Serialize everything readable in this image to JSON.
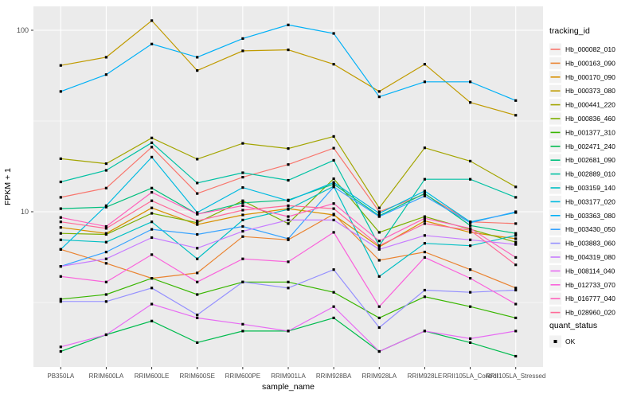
{
  "chart_data": {
    "type": "line",
    "title": "",
    "xlabel": "sample_name",
    "ylabel": "FPKM + 1",
    "y_scale": "log10",
    "y_ticks": [
      "100",
      "10"
    ],
    "y_tick_values": [
      100,
      10
    ],
    "ylim": [
      1.4,
      130
    ],
    "grid": "on",
    "legend_position": "right",
    "categories": [
      "PB350LA",
      "RRIM600LA",
      "RRIM600LE",
      "RRIM600SE",
      "RRIM600PE",
      "RRIM901LA",
      "RRIM928BA",
      "RRIM928LA",
      "RRIM928LE",
      "RRII105LA_Control",
      "RRII105LA_Stressed"
    ],
    "series": [
      {
        "name": "Hb_000082_010",
        "color": "#F8766D",
        "values": [
          12.0,
          13.5,
          22.7,
          12.6,
          15.5,
          18.2,
          22.4,
          10.0,
          12.5,
          8.8,
          8.6
        ]
      },
      {
        "name": "Hb_000163_090",
        "color": "#EA8331",
        "values": [
          6.2,
          5.2,
          4.3,
          4.6,
          7.3,
          7.0,
          9.7,
          5.4,
          6.0,
          4.8,
          3.8
        ]
      },
      {
        "name": "Hb_000170_090",
        "color": "#D89000",
        "values": [
          8.2,
          7.6,
          10.5,
          8.5,
          9.6,
          10.4,
          9.6,
          6.4,
          8.9,
          7.7,
          7.1
        ]
      },
      {
        "name": "Hb_000373_080",
        "color": "#C09B00",
        "values": [
          64,
          71,
          113,
          60,
          77,
          78,
          65,
          46,
          65,
          40,
          34
        ]
      },
      {
        "name": "Hb_000441_220",
        "color": "#A3A500",
        "values": [
          19.6,
          18.4,
          25.5,
          19.5,
          23.8,
          22.3,
          26.0,
          10.5,
          22.5,
          19.0,
          13.7
        ]
      },
      {
        "name": "Hb_000836_460",
        "color": "#7CAE00",
        "values": [
          7.6,
          7.5,
          9.8,
          8.7,
          11.5,
          8.6,
          15.2,
          7.7,
          9.4,
          8.0,
          6.8
        ]
      },
      {
        "name": "Hb_001377_310",
        "color": "#39B600",
        "values": [
          3.3,
          3.5,
          4.3,
          3.5,
          4.1,
          4.1,
          3.6,
          2.6,
          3.4,
          3.0,
          2.6
        ]
      },
      {
        "name": "Hb_002471_240",
        "color": "#00BB4E",
        "values": [
          1.7,
          2.1,
          2.5,
          1.9,
          2.2,
          2.2,
          2.6,
          1.7,
          2.2,
          1.9,
          1.6
        ]
      },
      {
        "name": "Hb_002681_090",
        "color": "#00BF7D",
        "values": [
          10.4,
          10.6,
          13.5,
          9.7,
          11.2,
          11.6,
          14.2,
          9.5,
          12.6,
          8.4,
          7.6
        ]
      },
      {
        "name": "Hb_002889_010",
        "color": "#00C1A3",
        "values": [
          14.6,
          16.9,
          24.0,
          14.4,
          16.4,
          14.9,
          19.2,
          6.5,
          15.1,
          15.1,
          12.0
        ]
      },
      {
        "name": "Hb_003159_140",
        "color": "#00BFC4",
        "values": [
          7.0,
          6.8,
          8.8,
          5.5,
          9.0,
          10.3,
          13.8,
          4.4,
          6.7,
          6.5,
          7.4
        ]
      },
      {
        "name": "Hb_003177_020",
        "color": "#00BAE0",
        "values": [
          6.2,
          10.8,
          20.0,
          9.9,
          13.6,
          11.5,
          14.5,
          9.8,
          13.0,
          8.8,
          9.9
        ]
      },
      {
        "name": "Hb_003363_080",
        "color": "#00B0F6",
        "values": [
          46,
          57,
          84,
          71,
          90,
          107,
          96,
          43,
          52,
          52,
          41
        ]
      },
      {
        "name": "Hb_003430_050",
        "color": "#35A2FF",
        "values": [
          5.0,
          6.0,
          8.0,
          7.5,
          8.3,
          7.1,
          13.7,
          9.4,
          12.2,
          8.7,
          10.0
        ]
      },
      {
        "name": "Hb_003883_060",
        "color": "#9590FF",
        "values": [
          3.2,
          3.2,
          3.8,
          2.7,
          4.1,
          3.8,
          4.8,
          2.3,
          3.7,
          3.6,
          3.7
        ]
      },
      {
        "name": "Hb_004319_080",
        "color": "#C77CFF",
        "values": [
          5.0,
          5.5,
          7.2,
          6.3,
          7.8,
          9.0,
          9.0,
          6.2,
          7.4,
          7.0,
          6.6
        ]
      },
      {
        "name": "Hb_008114_040",
        "color": "#E76BF3",
        "values": [
          1.8,
          2.1,
          3.1,
          2.6,
          2.4,
          2.2,
          3.0,
          1.7,
          2.2,
          2.0,
          2.2
        ]
      },
      {
        "name": "Hb_012733_070",
        "color": "#FA62DB",
        "values": [
          4.4,
          4.1,
          5.8,
          4.1,
          5.5,
          5.3,
          7.7,
          3.0,
          5.6,
          4.3,
          3.1
        ]
      },
      {
        "name": "Hb_016777_040",
        "color": "#FF62BC",
        "values": [
          9.3,
          8.3,
          12.8,
          9.7,
          10.8,
          9.4,
          11.1,
          6.9,
          9.2,
          8.1,
          5.6
        ]
      },
      {
        "name": "Hb_028960_020",
        "color": "#FF6A98",
        "values": [
          8.8,
          8.1,
          11.5,
          8.9,
          10.2,
          10.8,
          10.4,
          6.5,
          8.6,
          7.9,
          5.1
        ]
      }
    ]
  },
  "legend": {
    "color_title": "tracking_id",
    "shape_title": "quant_status",
    "shape_items": [
      {
        "label": "OK",
        "marker": "black-square"
      }
    ]
  },
  "colors": {
    "panel_background": "#EBEBEB",
    "gridline": "#FFFFFF",
    "axis_text": "#4D4D4D",
    "title_text": "#000000",
    "legend_key_background": "#F2F2F2",
    "point": "#000000"
  }
}
